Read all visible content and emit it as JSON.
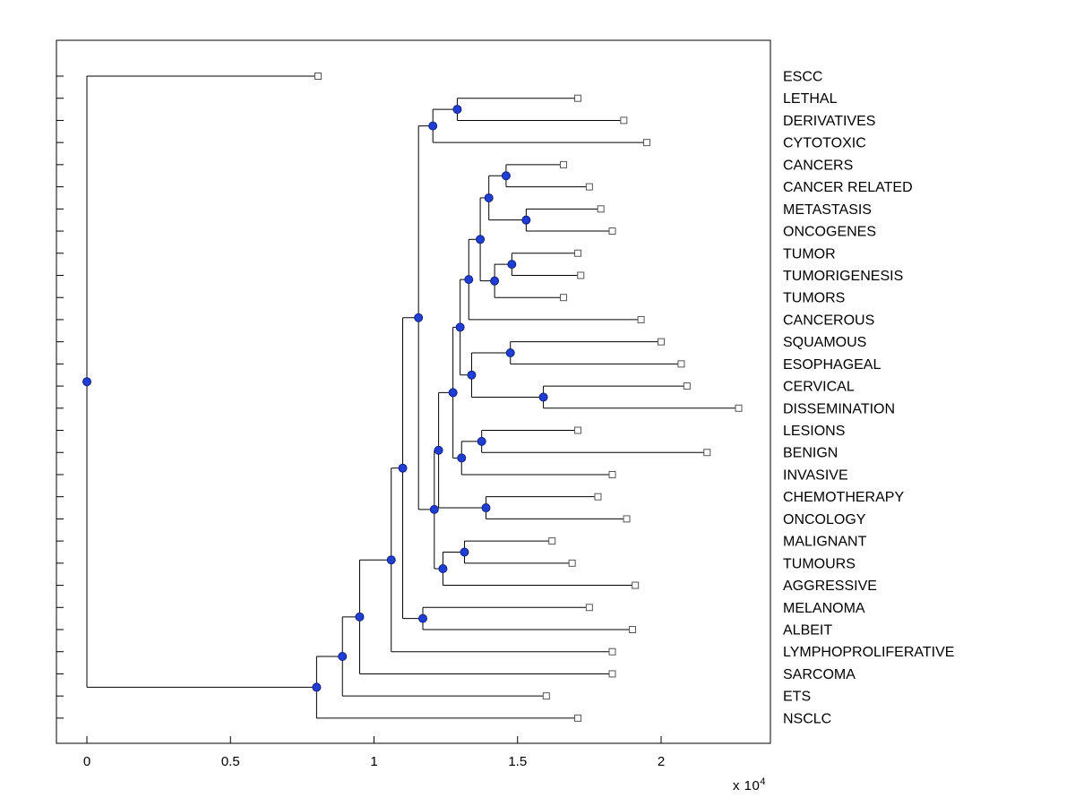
{
  "figure": {
    "background": "#ffffff",
    "colors": {
      "line": "#000000",
      "text": "#000000",
      "node_fill": "#1f3fd4",
      "node_stroke": "#13207e",
      "leaf_fill": "#ffffff",
      "leaf_stroke": "#555555"
    },
    "x_axis": {
      "tick_labels": [
        "0",
        "0.5",
        "1",
        "1.5",
        "2"
      ],
      "tick_values": [
        0,
        0.5,
        1,
        1.5,
        2
      ],
      "multiplier": {
        "base": "x 10",
        "exponent": "4"
      }
    }
  },
  "chart_data": {
    "type": "dendrogram",
    "orientation": "horizontal-left-to-right",
    "unit_multiplier": 10000,
    "x_range": [
      -0.11,
      2.38
    ],
    "grid": false,
    "legend": false,
    "title": "",
    "leaves": [
      {
        "label": "ESCC",
        "x": 0.805
      },
      {
        "label": "LETHAL",
        "x": 1.71
      },
      {
        "label": "DERIVATIVES",
        "x": 1.87
      },
      {
        "label": "CYTOTOXIC",
        "x": 1.95
      },
      {
        "label": "CANCERS",
        "x": 1.66
      },
      {
        "label": "CANCER RELATED",
        "x": 1.75
      },
      {
        "label": "METASTASIS",
        "x": 1.79
      },
      {
        "label": "ONCOGENES",
        "x": 1.83
      },
      {
        "label": "TUMOR",
        "x": 1.71
      },
      {
        "label": "TUMORIGENESIS",
        "x": 1.72
      },
      {
        "label": "TUMORS",
        "x": 1.66
      },
      {
        "label": "CANCEROUS",
        "x": 1.93
      },
      {
        "label": "SQUAMOUS",
        "x": 2.0
      },
      {
        "label": "ESOPHAGEAL",
        "x": 2.07
      },
      {
        "label": "CERVICAL",
        "x": 2.09
      },
      {
        "label": "DISSEMINATION",
        "x": 2.27
      },
      {
        "label": "LESIONS",
        "x": 1.71
      },
      {
        "label": "BENIGN",
        "x": 2.16
      },
      {
        "label": "INVASIVE",
        "x": 1.83
      },
      {
        "label": "CHEMOTHERAPY",
        "x": 1.78
      },
      {
        "label": "ONCOLOGY",
        "x": 1.88
      },
      {
        "label": "MALIGNANT",
        "x": 1.62
      },
      {
        "label": "TUMOURS",
        "x": 1.69
      },
      {
        "label": "AGGRESSIVE",
        "x": 1.91
      },
      {
        "label": "MELANOMA",
        "x": 1.75
      },
      {
        "label": "ALBEIT",
        "x": 1.9
      },
      {
        "label": "LYMPHOPROLIFERATIVE",
        "x": 1.83
      },
      {
        "label": "SARCOMA",
        "x": 1.83
      },
      {
        "label": "ETS",
        "x": 1.6
      },
      {
        "label": "NSCLC",
        "x": 1.71
      }
    ],
    "branches": [
      {
        "id": "n1",
        "x": 1.29,
        "children": [
          "LETHAL",
          "DERIVATIVES"
        ]
      },
      {
        "id": "n2",
        "x": 1.205,
        "children": [
          "n1",
          "CYTOTOXIC"
        ]
      },
      {
        "id": "n3",
        "x": 1.46,
        "children": [
          "CANCERS",
          "CANCER RELATED"
        ]
      },
      {
        "id": "n4",
        "x": 1.53,
        "children": [
          "METASTASIS",
          "ONCOGENES"
        ]
      },
      {
        "id": "n5",
        "x": 1.4,
        "children": [
          "n3",
          "n4"
        ]
      },
      {
        "id": "n6",
        "x": 1.48,
        "children": [
          "TUMOR",
          "TUMORIGENESIS"
        ]
      },
      {
        "id": "n7",
        "x": 1.42,
        "children": [
          "n6",
          "TUMORS"
        ]
      },
      {
        "id": "n8",
        "x": 1.37,
        "children": [
          "n5",
          "n7"
        ]
      },
      {
        "id": "n9",
        "x": 1.33,
        "children": [
          "n8",
          "CANCEROUS"
        ]
      },
      {
        "id": "n10",
        "x": 1.475,
        "children": [
          "SQUAMOUS",
          "ESOPHAGEAL"
        ]
      },
      {
        "id": "n11",
        "x": 1.59,
        "children": [
          "CERVICAL",
          "DISSEMINATION"
        ]
      },
      {
        "id": "n12",
        "x": 1.34,
        "children": [
          "n10",
          "n11"
        ]
      },
      {
        "id": "n13",
        "x": 1.3,
        "children": [
          "n9",
          "n12"
        ]
      },
      {
        "id": "n14",
        "x": 1.375,
        "children": [
          "LESIONS",
          "BENIGN"
        ]
      },
      {
        "id": "n15",
        "x": 1.305,
        "children": [
          "n14",
          "INVASIVE"
        ]
      },
      {
        "id": "n16",
        "x": 1.39,
        "children": [
          "CHEMOTHERAPY",
          "ONCOLOGY"
        ]
      },
      {
        "id": "n17",
        "x": 1.275,
        "children": [
          "n13",
          "n15"
        ]
      },
      {
        "id": "n18",
        "x": 1.225,
        "children": [
          "n17",
          "n16"
        ]
      },
      {
        "id": "n19",
        "x": 1.315,
        "children": [
          "MALIGNANT",
          "TUMOURS"
        ]
      },
      {
        "id": "n20",
        "x": 1.24,
        "children": [
          "n19",
          "AGGRESSIVE"
        ]
      },
      {
        "id": "n21",
        "x": 1.21,
        "children": [
          "n18",
          "n20"
        ]
      },
      {
        "id": "n22",
        "x": 1.155,
        "children": [
          "n2",
          "n21"
        ]
      },
      {
        "id": "n23",
        "x": 1.17,
        "children": [
          "MELANOMA",
          "ALBEIT"
        ]
      },
      {
        "id": "n24",
        "x": 1.1,
        "children": [
          "n22",
          "n23"
        ]
      },
      {
        "id": "n25",
        "x": 1.06,
        "children": [
          "n24",
          "LYMPHOPROLIFERATIVE"
        ]
      },
      {
        "id": "n26",
        "x": 0.95,
        "children": [
          "n25",
          "SARCOMA"
        ]
      },
      {
        "id": "n27",
        "x": 0.89,
        "children": [
          "n26",
          "ETS"
        ]
      },
      {
        "id": "n28",
        "x": 0.8,
        "children": [
          "n27",
          "NSCLC"
        ]
      },
      {
        "id": "n29",
        "x": 0.0,
        "children": [
          "ESCC",
          "n28"
        ]
      }
    ],
    "root": "n29"
  }
}
